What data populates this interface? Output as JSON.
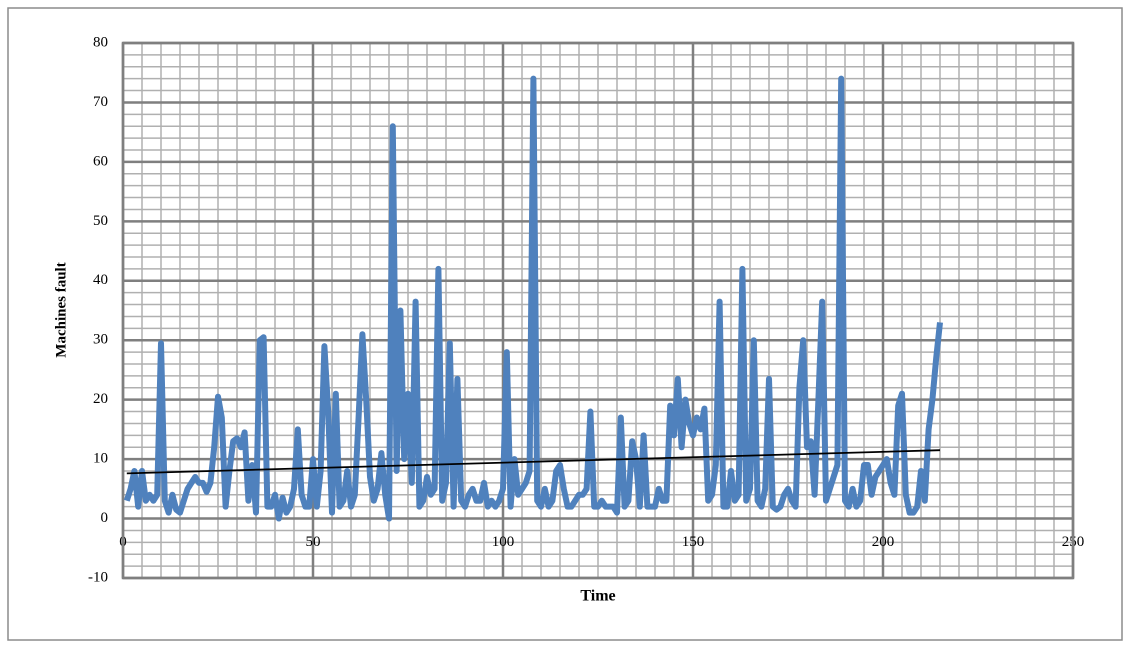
{
  "chart_data": {
    "type": "line",
    "x_label": "Time",
    "y_label": "Machines fault",
    "xlim": [
      0,
      250
    ],
    "xticks": [
      0,
      50,
      100,
      150,
      200,
      250
    ],
    "ylim": [
      -10,
      80
    ],
    "yticks": [
      -10,
      0,
      10,
      20,
      30,
      40,
      50,
      60,
      70,
      80
    ],
    "grid": true,
    "minor_grid": true,
    "series": [
      {
        "color": "#4f81bd",
        "x": [
          1,
          2,
          3,
          4,
          5,
          6,
          7,
          8,
          9,
          10,
          11,
          12,
          13,
          14,
          15,
          16,
          17,
          18,
          19,
          20,
          21,
          22,
          23,
          24,
          25,
          26,
          27,
          28,
          29,
          30,
          31,
          32,
          33,
          34,
          35,
          36,
          37,
          38,
          39,
          40,
          41,
          42,
          43,
          44,
          45,
          46,
          47,
          48,
          49,
          50,
          51,
          52,
          53,
          54,
          55,
          56,
          57,
          58,
          59,
          60,
          61,
          62,
          63,
          64,
          65,
          66,
          67,
          68,
          69,
          70,
          71,
          72,
          73,
          74,
          75,
          76,
          77,
          78,
          79,
          80,
          81,
          82,
          83,
          84,
          85,
          86,
          87,
          88,
          89,
          90,
          91,
          92,
          93,
          94,
          95,
          96,
          97,
          98,
          99,
          100,
          101,
          102,
          103,
          104,
          105,
          106,
          107,
          108,
          109,
          110,
          111,
          112,
          113,
          114,
          115,
          116,
          117,
          118,
          119,
          120,
          121,
          122,
          123,
          124,
          125,
          126,
          127,
          128,
          129,
          130,
          131,
          132,
          133,
          134,
          135,
          136,
          137,
          138,
          139,
          140,
          141,
          142,
          143,
          144,
          145,
          146,
          147,
          148,
          149,
          150,
          151,
          152,
          153,
          154,
          155,
          156,
          157,
          158,
          159,
          160,
          161,
          162,
          163,
          164,
          165,
          166,
          167,
          168,
          169,
          170,
          171,
          172,
          173,
          174,
          175,
          176,
          177,
          178,
          179,
          180,
          181,
          182,
          183,
          184,
          185,
          186,
          187,
          188,
          189,
          190,
          191,
          192,
          193,
          194,
          195,
          196,
          197,
          198,
          199,
          200,
          201,
          202,
          203,
          204,
          205,
          206,
          207,
          208,
          209,
          210,
          211,
          212,
          213,
          214,
          215
        ],
        "values": [
          3,
          5,
          8,
          2,
          8,
          3,
          4,
          3,
          4,
          29.5,
          3,
          1,
          4,
          1.5,
          1,
          3,
          5,
          6,
          7,
          6,
          6,
          4.5,
          6,
          12,
          20.5,
          17,
          2,
          8,
          13,
          13.5,
          12,
          14.5,
          3,
          9,
          1,
          30,
          30.5,
          2,
          2,
          4,
          0,
          3.5,
          1,
          2,
          5,
          15,
          4,
          2,
          2,
          10,
          2,
          8,
          29,
          18,
          1,
          21,
          2,
          3,
          8,
          2,
          4,
          17,
          31,
          20,
          7,
          3,
          5,
          11,
          4,
          0,
          66,
          8,
          35,
          10,
          21,
          6,
          36.5,
          2,
          3,
          7,
          4,
          5,
          42,
          3,
          6,
          29.5,
          2,
          23.5,
          3,
          2,
          4,
          5,
          3,
          3,
          6,
          2,
          3,
          2,
          3,
          5,
          28,
          2,
          10,
          4,
          5,
          6,
          8,
          74,
          3,
          2,
          5,
          2,
          3,
          8,
          9,
          5,
          2,
          2,
          3,
          4,
          4,
          5,
          18,
          2,
          2,
          3,
          2,
          2,
          2,
          1,
          17,
          2,
          3,
          13,
          10,
          2,
          14,
          2,
          2,
          2,
          5,
          3,
          3,
          19,
          14,
          23.5,
          12,
          20,
          16,
          14,
          17,
          15,
          18.5,
          3,
          4,
          9,
          36.5,
          2,
          2,
          8,
          3,
          4,
          42,
          3,
          5,
          30,
          3,
          2,
          5,
          23.5,
          2,
          1.5,
          2,
          4,
          5,
          3,
          2,
          22,
          30,
          12,
          13,
          4,
          20,
          36.5,
          3,
          5,
          7,
          9,
          74,
          3,
          2,
          5,
          2,
          3,
          9,
          9,
          4,
          7,
          8,
          9,
          10,
          6,
          4,
          19,
          21,
          4,
          1,
          1,
          2,
          8,
          3,
          15,
          20,
          27,
          33
        ]
      }
    ],
    "trendline": {
      "color": "#000000",
      "x": [
        1,
        215
      ],
      "values": [
        7.6,
        11.5
      ]
    }
  }
}
